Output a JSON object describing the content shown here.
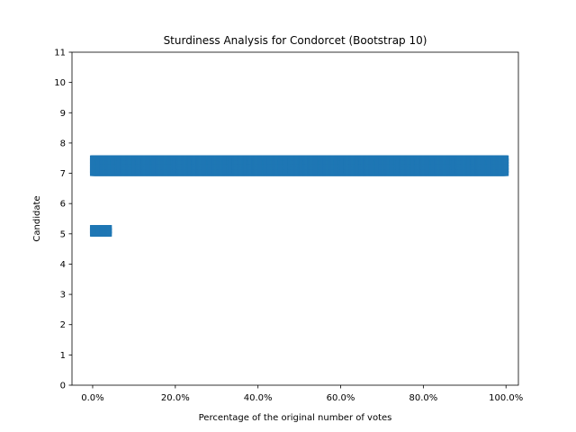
{
  "chart_data": {
    "type": "scatter",
    "title": "Sturdiness Analysis for Condorcet (Bootstrap 10)",
    "xlabel": "Percentage of the original number of votes",
    "ylabel": "Candidate",
    "xlim": [
      -0.05,
      1.03
    ],
    "ylim": [
      0,
      11
    ],
    "xticks": [
      0,
      0.2,
      0.4,
      0.6,
      0.8,
      1.0
    ],
    "xtick_labels": [
      "0.0%",
      "20.0%",
      "40.0%",
      "60.0%",
      "80.0%",
      "100.0%"
    ],
    "yticks": [
      0,
      1,
      2,
      3,
      4,
      5,
      6,
      7,
      8,
      9,
      10,
      11
    ],
    "ytick_labels": [
      "0",
      "1",
      "2",
      "3",
      "4",
      "5",
      "6",
      "7",
      "8",
      "9",
      "10",
      "11"
    ],
    "grid": false,
    "legend": false,
    "marker_color": "#1f77b4",
    "series": [
      {
        "x_range": [
          0,
          1.0
        ],
        "x_step": 0.001,
        "y_values": [
          7.0,
          7.1,
          7.2,
          7.3,
          7.4,
          7.5
        ]
      },
      {
        "x_range": [
          0,
          0.04
        ],
        "x_step": 0.001,
        "y_values": [
          5.0,
          5.1,
          5.2
        ]
      }
    ]
  }
}
